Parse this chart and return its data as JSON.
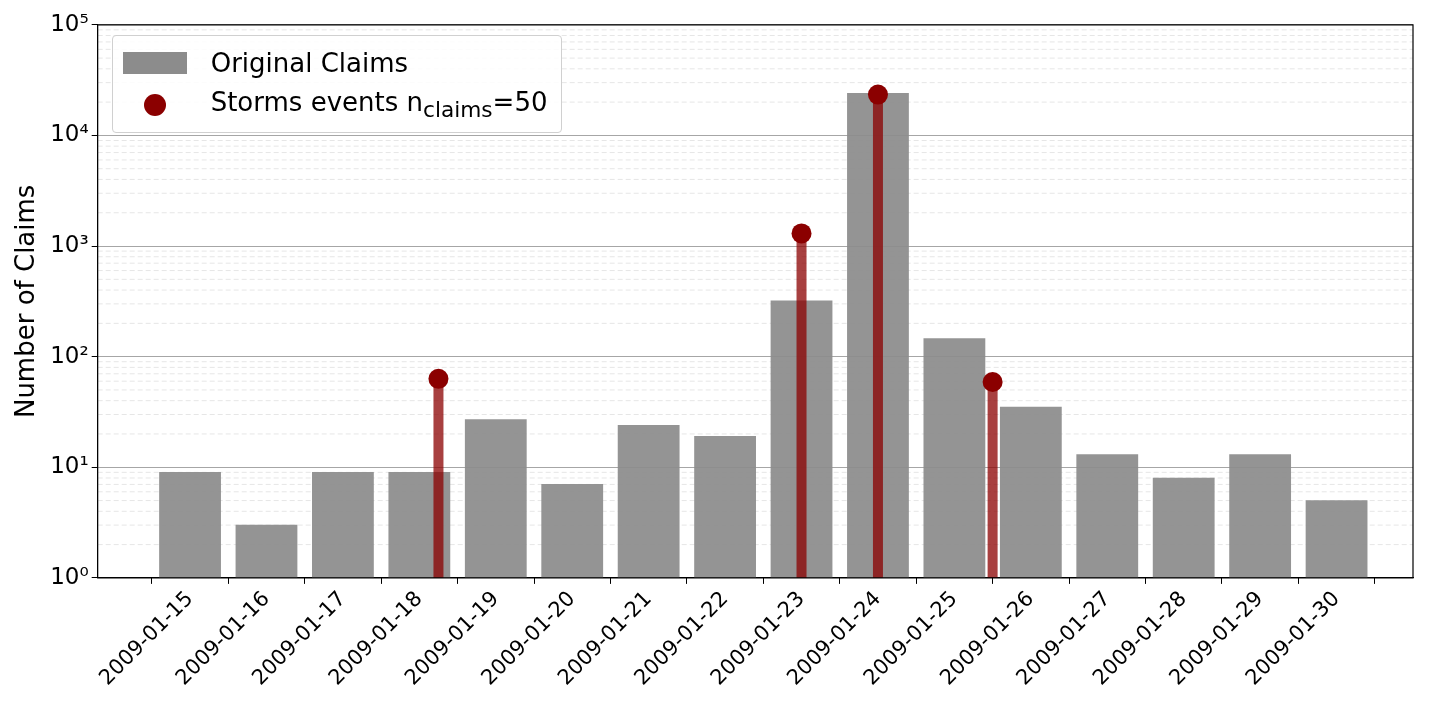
{
  "chart_data": {
    "type": "bar",
    "ylabel": "Number of Claims",
    "log": "y",
    "grid": "y",
    "legend": "top left",
    "marker": "circle",
    "x": [
      "2009-01-15",
      "2009-01-16",
      "2009-01-17",
      "2009-01-18",
      "2009-01-19",
      "2009-01-20",
      "2009-01-21",
      "2009-01-22",
      "2009-01-23",
      "2009-01-24",
      "2009-01-25",
      "2009-01-26",
      "2009-01-27",
      "2009-01-28",
      "2009-01-29",
      "2009-01-30"
    ],
    "xlim": [
      "2009-01-13T19:00",
      "2009-01-31T00:00"
    ],
    "xticks": [
      "2009-01-15",
      "2009-01-16",
      "2009-01-17",
      "2009-01-18",
      "2009-01-19",
      "2009-01-20",
      "2009-01-21",
      "2009-01-22",
      "2009-01-23",
      "2009-01-24",
      "2009-01-25",
      "2009-01-26",
      "2009-01-27",
      "2009-01-28",
      "2009-01-29",
      "2009-01-30"
    ],
    "ylim": [
      1,
      100000
    ],
    "yticks": [
      {
        "value": 1,
        "label": "10⁰"
      },
      {
        "value": 10,
        "label": "10¹"
      },
      {
        "value": 100,
        "label": "10²"
      },
      {
        "value": 1000,
        "label": "10³"
      },
      {
        "value": 10000,
        "label": "10⁴"
      },
      {
        "value": 100000,
        "label": "10⁵"
      }
    ],
    "series": [
      {
        "name": "Original Claims",
        "color": "#8c8c8c",
        "values": [
          9,
          3,
          9,
          9,
          27,
          7,
          24,
          19,
          320,
          24000,
          146,
          35,
          13,
          8,
          13,
          5
        ]
      },
      {
        "name": "Storms events n$_{claims}$=50",
        "type": "lollipop",
        "color": "#8b0000",
        "x": [
          "2009-01-18T06:00",
          "2009-01-23T00:00",
          "2009-01-24T00:00",
          "2009-01-25T12:00"
        ],
        "values": [
          63,
          1300,
          23400,
          59
        ]
      }
    ]
  }
}
